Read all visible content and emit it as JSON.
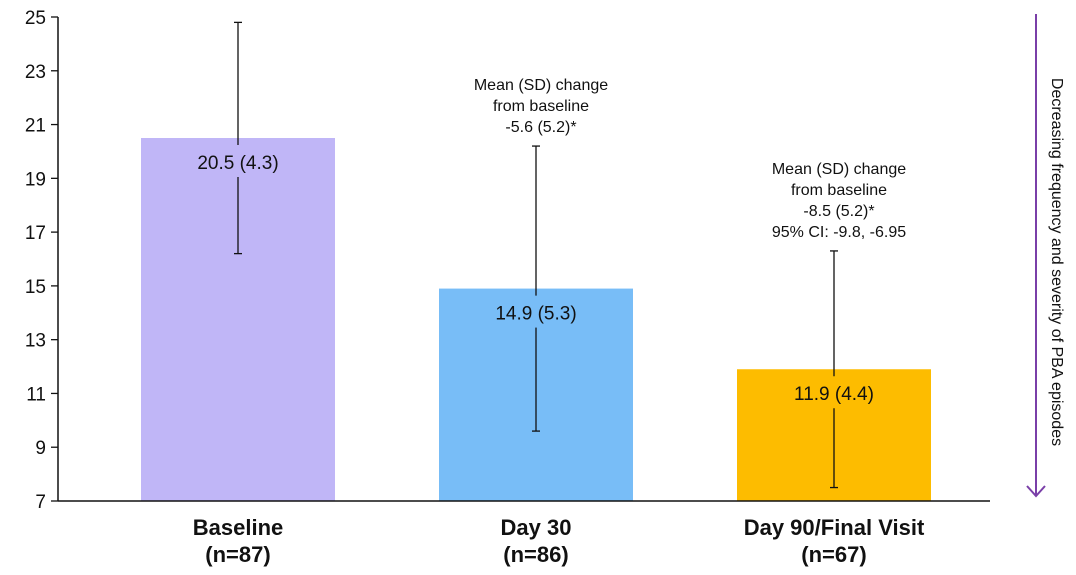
{
  "chart_data": {
    "type": "bar",
    "categories": [
      "Baseline",
      "Day 30",
      "Day 90/Final Visit"
    ],
    "category_n": [
      "(n=87)",
      "(n=86)",
      "(n=67)"
    ],
    "values": [
      20.5,
      14.9,
      11.9
    ],
    "errors": [
      4.3,
      5.3,
      4.4
    ],
    "value_labels": [
      "20.5 (4.3)",
      "14.9 (5.3)",
      "11.9 (4.4)"
    ],
    "bar_colors": [
      "#c0b6f7",
      "#78bdf7",
      "#fdbc00"
    ],
    "ylim": [
      7,
      25
    ],
    "yticks": [
      7,
      9,
      11,
      13,
      15,
      17,
      19,
      21,
      23,
      25
    ],
    "annotations": [
      {
        "category": "Day 30",
        "lines": [
          "Mean (SD) change",
          "from baseline",
          "-5.6 (5.2)*"
        ]
      },
      {
        "category": "Day 90/Final Visit",
        "lines": [
          "Mean (SD) change",
          "from baseline",
          "-8.5 (5.2)*",
          "95% CI: -9.8, -6.95"
        ]
      }
    ],
    "side_label": "Decreasing frequency and severity of PBA episodes",
    "arrow_color": "#7a3fa8",
    "grid": false
  }
}
